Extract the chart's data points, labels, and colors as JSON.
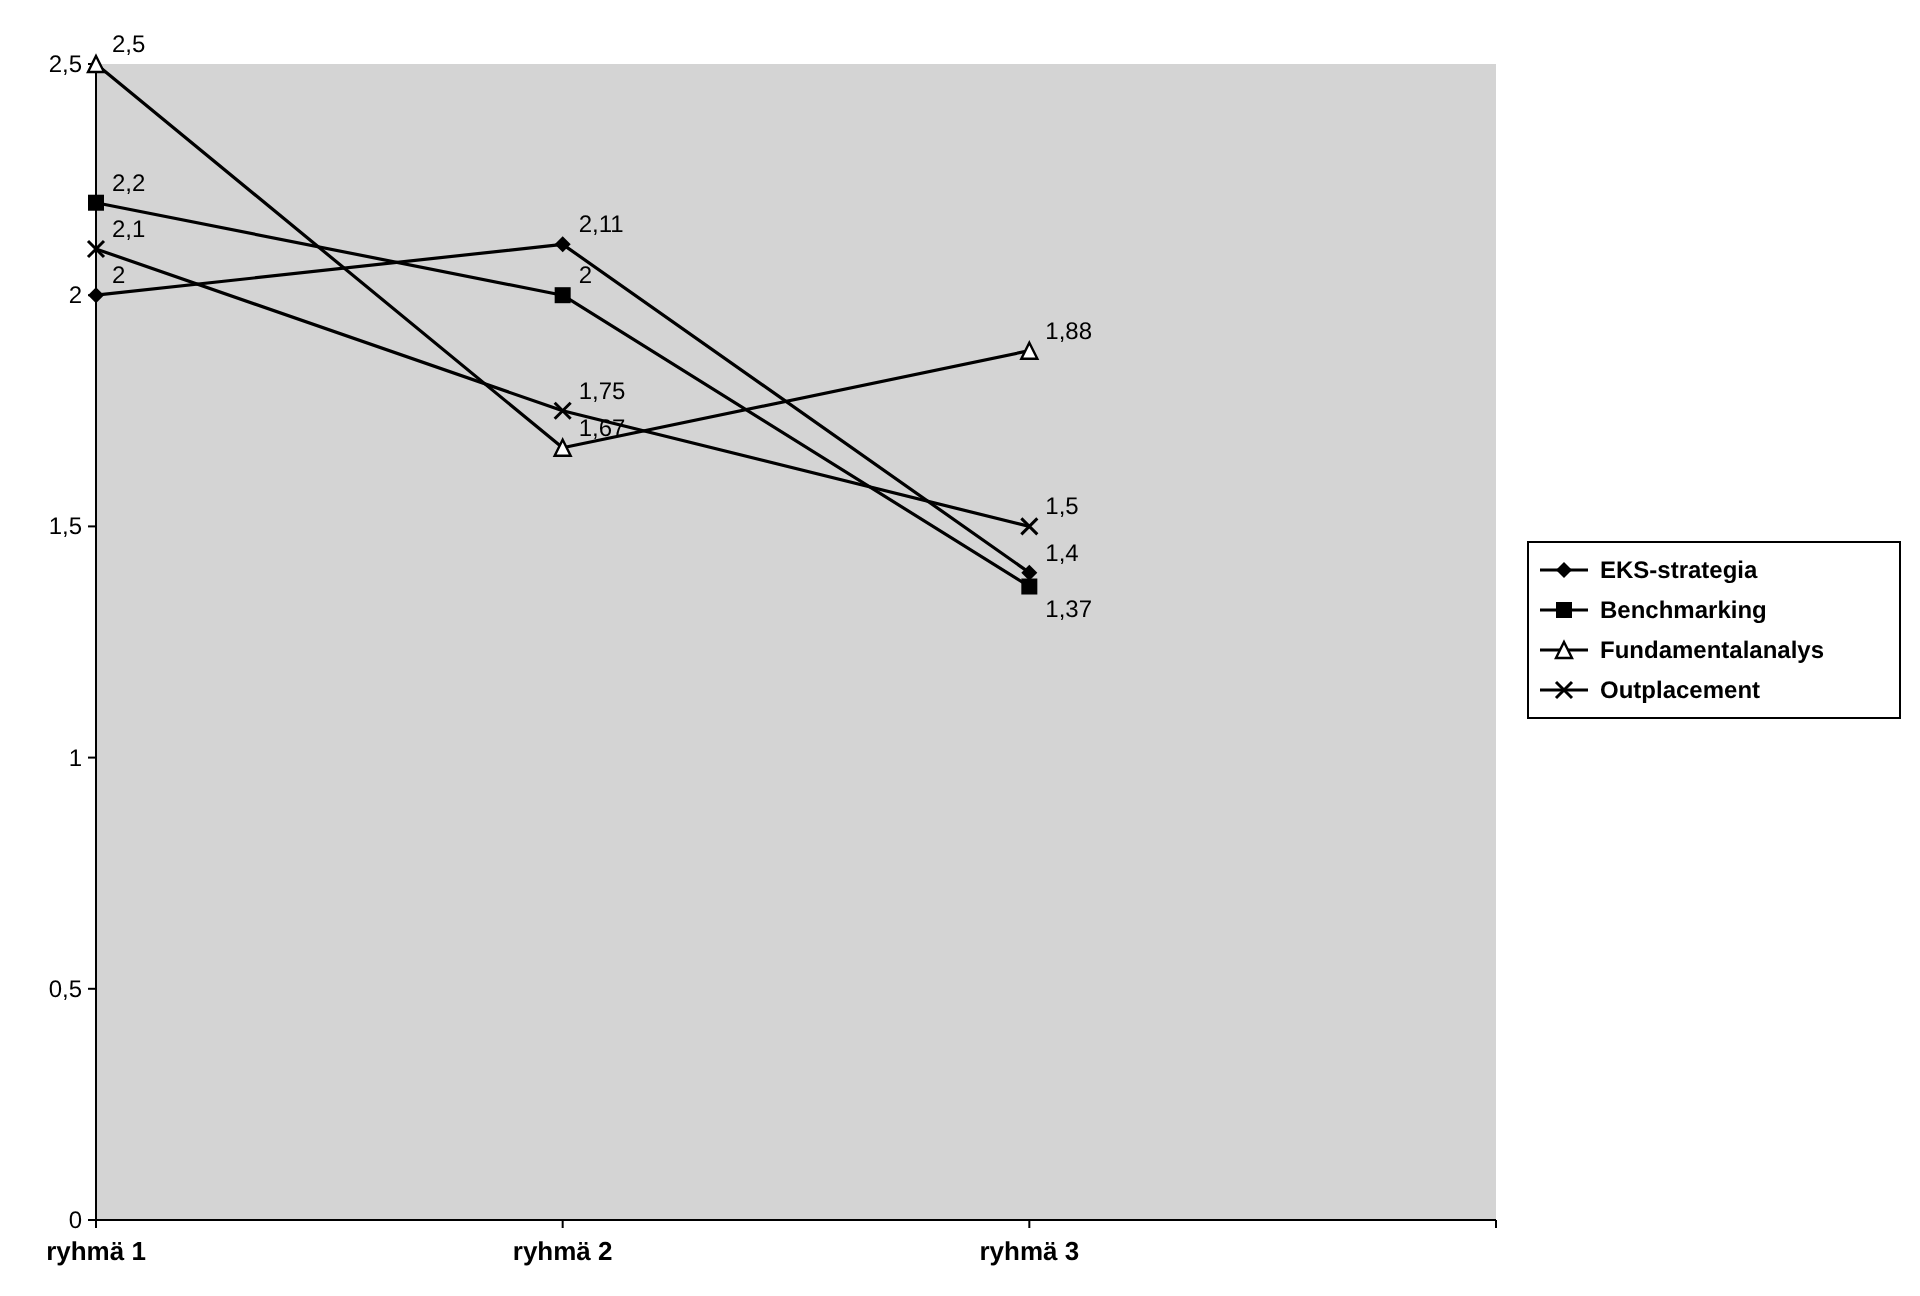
{
  "chart_data": {
    "type": "line",
    "categories": [
      "ryhmä 1",
      "ryhmä 2",
      "ryhmä 3",
      null
    ],
    "series": [
      {
        "name": "EKS-strategia",
        "color": "#000000",
        "marker": "diamond",
        "values": [
          2,
          2.11,
          1.4,
          null
        ],
        "value_labels": [
          "2",
          "2,11",
          "1,4",
          null
        ]
      },
      {
        "name": "Benchmarking",
        "color": "#000000",
        "marker": "square",
        "values": [
          2.2,
          2,
          1.37,
          null
        ],
        "value_labels": [
          "2,2",
          "2",
          "1,37",
          null
        ]
      },
      {
        "name": "Fundamentalanalys",
        "color": "#000000",
        "marker": "triangle",
        "values": [
          2.5,
          1.67,
          1.88,
          null
        ],
        "value_labels": [
          "2,5",
          "1,67",
          "1,88",
          null
        ]
      },
      {
        "name": "Outplacement",
        "color": "#000000",
        "marker": "cross",
        "values": [
          2.1,
          1.75,
          1.5,
          null
        ],
        "value_labels": [
          "2,1",
          "1,75",
          "1,5",
          null
        ]
      }
    ],
    "ylim": [
      0,
      2.5
    ],
    "yticks": [
      0,
      {
        "value": 0.5,
        "label": "0,5"
      },
      1,
      {
        "value": 1.5,
        "label": "1,5"
      },
      2,
      {
        "value": 2.5,
        "label": "2,5"
      }
    ],
    "grid": false,
    "legend": "right",
    "line_style": "solid"
  }
}
